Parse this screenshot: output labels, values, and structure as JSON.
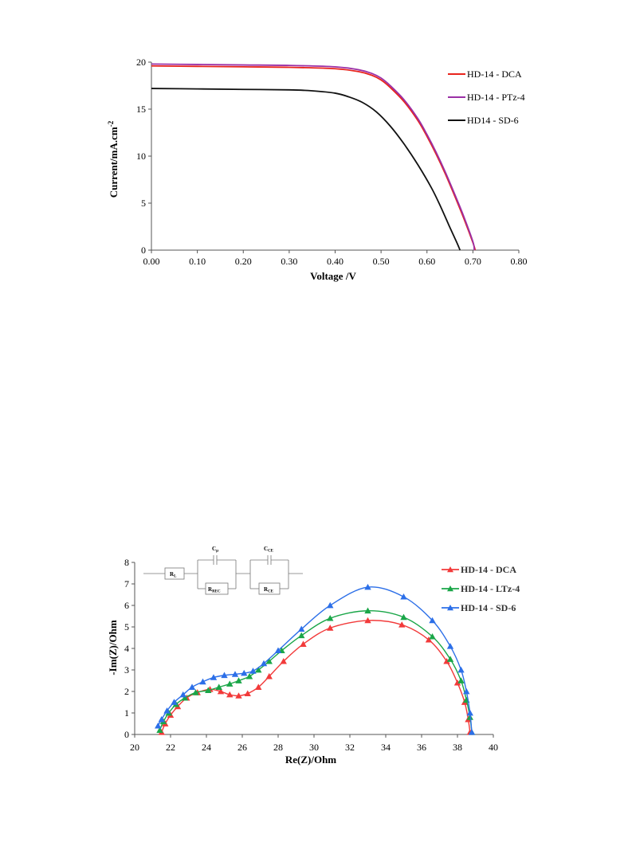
{
  "chart_data": [
    {
      "type": "line",
      "title": "",
      "xlabel": "Voltage /V",
      "ylabel": "Current/mA.cm",
      "ylabel_sup": "-2",
      "xlim": [
        0,
        0.8
      ],
      "ylim": [
        0,
        20
      ],
      "xticks": [
        "0.00",
        "0.10",
        "0.20",
        "0.30",
        "0.40",
        "0.50",
        "0.60",
        "0.70",
        "0.80"
      ],
      "yticks": [
        "0",
        "5",
        "10",
        "15",
        "20"
      ],
      "grid": false,
      "legend_position": "top-right",
      "series": [
        {
          "name": "HD-14 - DCA",
          "color": "#e8231c",
          "x": [
            0,
            0.1,
            0.2,
            0.3,
            0.4,
            0.45,
            0.48,
            0.5,
            0.52,
            0.55,
            0.58,
            0.6,
            0.62,
            0.64,
            0.66,
            0.68,
            0.7,
            0.705
          ],
          "y": [
            19.6,
            19.55,
            19.5,
            19.45,
            19.3,
            19.0,
            18.6,
            18.1,
            17.3,
            15.8,
            13.8,
            12.1,
            10.2,
            8.1,
            5.8,
            3.4,
            0.8,
            0
          ]
        },
        {
          "name": "HD-14 - PTz-4",
          "color": "#9b30a6",
          "x": [
            0,
            0.1,
            0.2,
            0.3,
            0.4,
            0.45,
            0.48,
            0.5,
            0.52,
            0.55,
            0.58,
            0.6,
            0.62,
            0.64,
            0.66,
            0.68,
            0.7,
            0.703
          ],
          "y": [
            19.8,
            19.75,
            19.7,
            19.65,
            19.5,
            19.2,
            18.8,
            18.3,
            17.5,
            16.0,
            14.0,
            12.3,
            10.4,
            8.3,
            6.0,
            3.6,
            0.9,
            0
          ]
        },
        {
          "name": "HD14 - SD-6",
          "color": "#111111",
          "x": [
            0,
            0.1,
            0.2,
            0.3,
            0.35,
            0.4,
            0.43,
            0.46,
            0.49,
            0.52,
            0.55,
            0.58,
            0.61,
            0.63,
            0.65,
            0.665,
            0.672
          ],
          "y": [
            17.2,
            17.15,
            17.1,
            17.05,
            16.95,
            16.7,
            16.3,
            15.7,
            14.7,
            13.2,
            11.3,
            9.1,
            6.6,
            4.6,
            2.4,
            0.8,
            0
          ]
        }
      ]
    },
    {
      "type": "scatter",
      "title": "",
      "xlabel": "Re(Z)/Ohm",
      "ylabel": "-Im(Z)/Ohm",
      "xlim": [
        20,
        40
      ],
      "ylim": [
        0,
        8
      ],
      "xticks": [
        "20",
        "22",
        "24",
        "26",
        "28",
        "30",
        "32",
        "34",
        "36",
        "38",
        "40"
      ],
      "yticks": [
        "0",
        "1",
        "2",
        "3",
        "4",
        "5",
        "6",
        "7",
        "8"
      ],
      "grid": false,
      "legend_position": "top-right",
      "series": [
        {
          "name": "HD-14 - DCA",
          "color": "#f23a3a",
          "x": [
            21.5,
            21.7,
            22.0,
            22.4,
            22.9,
            23.5,
            24.2,
            24.8,
            25.3,
            25.8,
            26.3,
            26.9,
            27.5,
            28.3,
            29.4,
            30.9,
            33.0,
            34.9,
            36.4,
            37.4,
            38.0,
            38.4,
            38.6,
            38.7
          ],
          "y": [
            0.1,
            0.5,
            0.9,
            1.3,
            1.7,
            1.95,
            2.1,
            2.0,
            1.85,
            1.8,
            1.9,
            2.2,
            2.7,
            3.4,
            4.2,
            4.95,
            5.3,
            5.1,
            4.4,
            3.4,
            2.4,
            1.5,
            0.7,
            0.1
          ]
        },
        {
          "name": "HD-14 - LTz-4",
          "color": "#1aa648",
          "x": [
            21.4,
            21.6,
            21.9,
            22.3,
            22.8,
            23.4,
            24.1,
            24.7,
            25.3,
            25.8,
            26.4,
            26.9,
            27.5,
            28.2,
            29.3,
            30.9,
            33.0,
            35.0,
            36.6,
            37.6,
            38.2,
            38.5,
            38.7,
            38.8
          ],
          "y": [
            0.2,
            0.6,
            1.0,
            1.4,
            1.7,
            1.95,
            2.05,
            2.2,
            2.35,
            2.5,
            2.7,
            3.0,
            3.4,
            3.9,
            4.6,
            5.4,
            5.75,
            5.45,
            4.55,
            3.5,
            2.5,
            1.6,
            0.8,
            0.1
          ]
        },
        {
          "name": "HD-14 - SD-6",
          "color": "#2c6fe8",
          "x": [
            21.3,
            21.5,
            21.8,
            22.2,
            22.7,
            23.2,
            23.8,
            24.4,
            25.0,
            25.6,
            26.1,
            26.6,
            27.2,
            28.0,
            29.3,
            30.9,
            33.0,
            35.0,
            36.6,
            37.6,
            38.2,
            38.5,
            38.7,
            38.8
          ],
          "y": [
            0.4,
            0.7,
            1.1,
            1.5,
            1.85,
            2.2,
            2.45,
            2.65,
            2.75,
            2.8,
            2.85,
            2.95,
            3.3,
            3.9,
            4.9,
            6.0,
            6.85,
            6.4,
            5.3,
            4.1,
            3.0,
            2.0,
            1.0,
            0.1
          ]
        }
      ],
      "inset_circuit": {
        "labels": [
          "R",
          "L",
          "C",
          "μ",
          "R",
          "REC",
          "C",
          "CE",
          "R",
          "CE"
        ]
      }
    }
  ]
}
